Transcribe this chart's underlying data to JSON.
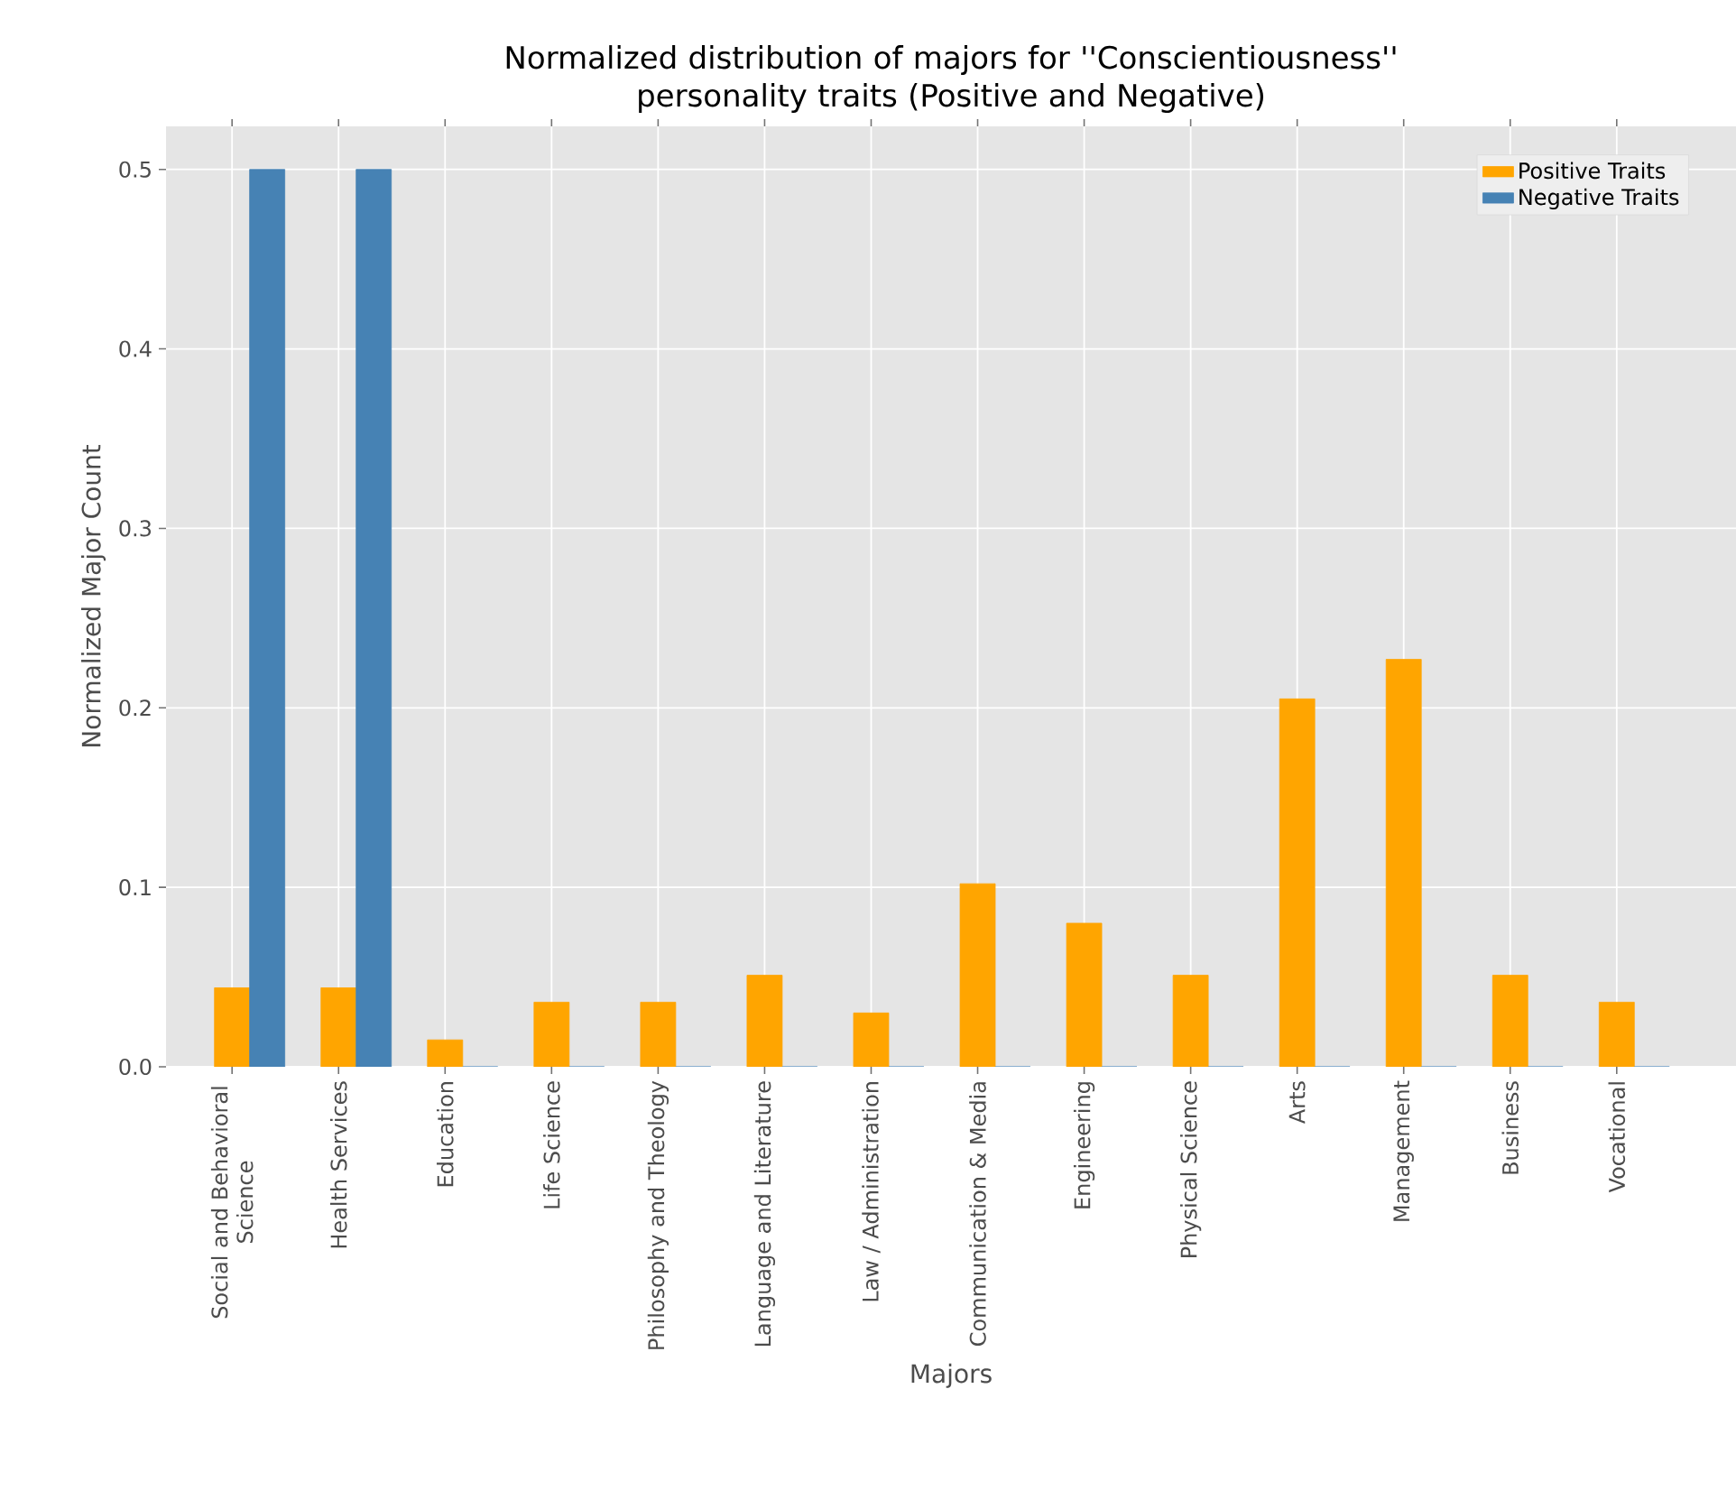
{
  "chart_data": {
    "type": "bar",
    "title": "Normalized distribution of majors for ''Conscientiousness'' personality traits (Positive and Negative)",
    "xlabel": "Majors",
    "ylabel": "Normalized Major Count",
    "categories": [
      "Social and Behavioral Science",
      "Health Services",
      "Education",
      "Life Science",
      "Philosophy and Theology",
      "Language and Literature",
      "Law / Administration",
      "Communication & Media",
      "Engineering",
      "Physical Science",
      "Arts",
      "Management",
      "Business",
      "Vocational"
    ],
    "series": [
      {
        "name": "Positive Traits",
        "color": "#ffa500",
        "values": [
          0.044,
          0.044,
          0.015,
          0.036,
          0.036,
          0.051,
          0.03,
          0.102,
          0.08,
          0.051,
          0.205,
          0.227,
          0.051,
          0.036
        ]
      },
      {
        "name": "Negative Traits",
        "color": "#4682b4",
        "values": [
          0.5,
          0.5,
          0,
          0,
          0,
          0,
          0,
          0,
          0,
          0,
          0,
          0,
          0,
          0
        ]
      }
    ],
    "ylim": [
      0,
      0.524
    ],
    "yticks": [
      {
        "value": 0,
        "label": "0.0"
      },
      0.1,
      0.2,
      0.3,
      0.4,
      0.5
    ],
    "grid": true,
    "legend": "top right"
  }
}
